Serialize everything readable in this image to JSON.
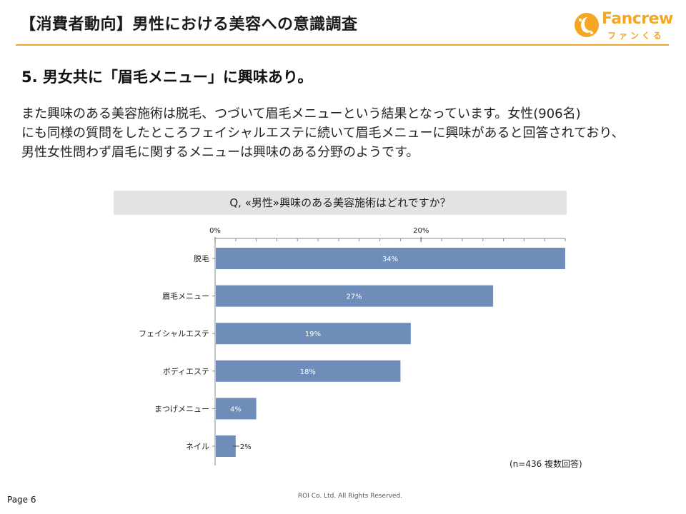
{
  "header": {
    "title": "【消費者動向】男性における美容への意識調査"
  },
  "logo": {
    "name": "Fancrew",
    "sub": "ファンくる"
  },
  "section": {
    "title": "5.  男女共に「眉毛メニュー」に興味あり。"
  },
  "body": {
    "line1": "また興味のある美容施術は脱毛、つづいて眉毛メニューという結果となっています。女性(906名)",
    "line2": "にも同様の質問をしたところフェイシャルエステに続いて眉毛メニューに興味があると回答されており、",
    "line3": "男性女性問わず眉毛に関するメニューは興味のある分野のようです。"
  },
  "question": "Q, «男性»興味のある美容施術はどれですか？",
  "note": "(n=436 複数回答)",
  "footer": {
    "page": "Page 6",
    "copyright": "ROI Co. Ltd. All Rights Reserved."
  },
  "colors": {
    "bar": "#6f8db9",
    "accent": "#f2a531"
  },
  "chart_data": {
    "type": "bar",
    "orientation": "horizontal",
    "categories": [
      "脱毛",
      "眉毛メニュー",
      "フェイシャルエステ",
      "ボディエステ",
      "まつげメニュー",
      "ネイル"
    ],
    "values": [
      34,
      27,
      19,
      18,
      4,
      2
    ],
    "value_labels": [
      "34%",
      "27%",
      "19%",
      "18%",
      "4%",
      "2%"
    ],
    "xlim": [
      0,
      34
    ],
    "ticks": [
      {
        "value": 0,
        "label": "0%"
      },
      {
        "value": 20,
        "label": "20%"
      }
    ],
    "axis_position": "top",
    "minor_tick_step": 2
  }
}
